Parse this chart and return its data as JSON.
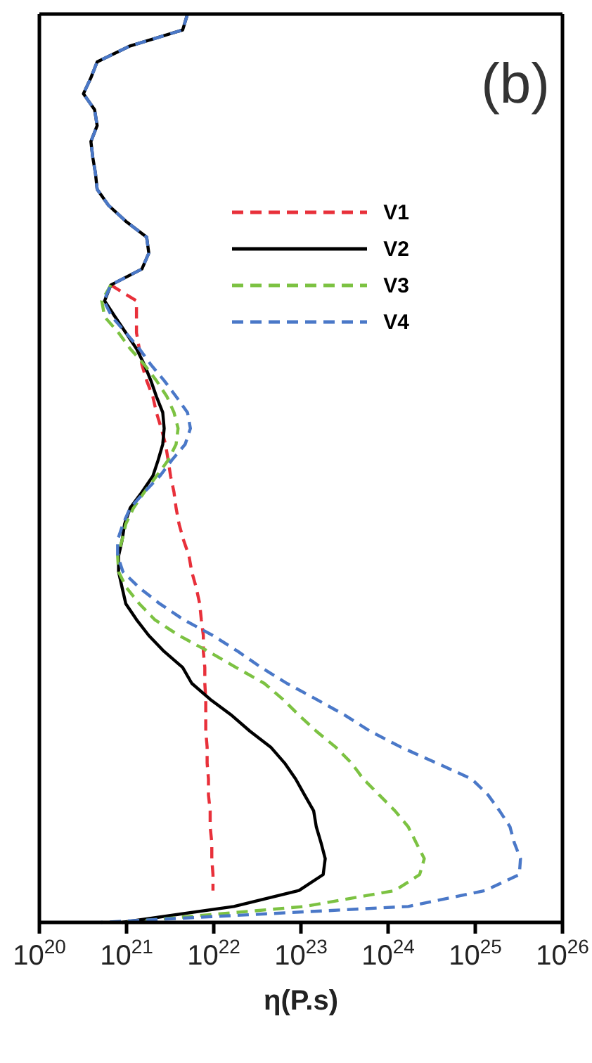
{
  "chart_data": {
    "type": "line",
    "orientation": "horizontal",
    "title": "(b)",
    "xlabel": "η(P.s)",
    "log": "x",
    "xlim": [
      1e+20,
      1e+26
    ],
    "xticks": [
      {
        "value": 1e+20,
        "label": "10$^{20}$"
      },
      {
        "value": 1e+21,
        "label": "10$^{21}$"
      },
      {
        "value": 1e+22,
        "label": "10$^{22}$"
      },
      {
        "value": 1e+23,
        "label": "10$^{23}$"
      },
      {
        "value": 1e+24,
        "label": "10$^{24}$"
      },
      {
        "value": 1e+25,
        "label": "10$^{25}$"
      },
      {
        "value": 1e+26,
        "label": "10$^{26}$"
      }
    ],
    "tick_labels": "x",
    "grid": false,
    "legend": "top right",
    "marker": "none",
    "categories": [
      null,
      null,
      null,
      null,
      null,
      null,
      null,
      null,
      null,
      null,
      null,
      null,
      null,
      null,
      null,
      null,
      null,
      null,
      null,
      null,
      null,
      null,
      null,
      null,
      null,
      null,
      null,
      null,
      null,
      null,
      null,
      null,
      null,
      null,
      null,
      null,
      null,
      null,
      null,
      null,
      null,
      null,
      null,
      null,
      null,
      null,
      null,
      null,
      null,
      null,
      null,
      null,
      null,
      null,
      null,
      null,
      null,
      null
    ],
    "series": [
      {
        "name": "V1",
        "color": "#e8303a",
        "line_style": "dashed",
        "values": [
          null,
          null,
          null,
          null,
          null,
          null,
          null,
          null,
          null,
          null,
          null,
          null,
          null,
          null,
          null,
          null,
          null,
          6.6e+20,
          1.3e+21,
          1.3e+21,
          1.3e+21,
          1.4e+21,
          1.5e+21,
          1.7e+21,
          2e+21,
          2.2e+21,
          2.5e+21,
          2.8e+21,
          3e+21,
          3.2e+21,
          3.5e+21,
          3.7e+21,
          4e+21,
          4.5e+21,
          5.2e+21,
          5.6e+21,
          6.3e+21,
          6.9e+21,
          7.2e+21,
          7.6e+21,
          7.6e+21,
          7.9e+21,
          7.9e+21,
          8.1e+21,
          8.1e+21,
          8.1e+21,
          8.4e+21,
          8.4e+21,
          8.7e+21,
          8.7e+21,
          9.1e+21,
          9.1e+21,
          9.5e+21,
          9.5e+21,
          9.8e+21,
          9.8e+21,
          null,
          null
        ]
      },
      {
        "name": "V2",
        "color": "#000000",
        "line_style": "solid",
        "values": [
          5e+21,
          4.4e+21,
          1.1e+21,
          4.6e+20,
          3.9e+20,
          3.2e+20,
          4.3e+20,
          4.6e+20,
          3.9e+20,
          4.1e+20,
          4.4e+20,
          4.6e+20,
          6.2e+20,
          9.8e+20,
          1.7e+21,
          1.8e+21,
          1.5e+21,
          6.6e+20,
          5.6e+20,
          7.4e+20,
          9.8e+20,
          1.3e+21,
          1.6e+21,
          1.9e+21,
          2.2e+21,
          2.6e+21,
          2.7e+21,
          2.6e+21,
          2.3e+21,
          2e+21,
          1.5e+21,
          1.1e+21,
          9.5e+20,
          8.9e+20,
          8.1e+20,
          8.1e+20,
          8.9e+20,
          9.8e+20,
          1.3e+21,
          1.8e+21,
          2.7e+21,
          4.4e+21,
          5.6e+21,
          9.1e+21,
          1.6e+22,
          2.6e+22,
          4.5e+22,
          6.5e+22,
          8.7e+22,
          1.1e+23,
          1.4e+23,
          1.5e+23,
          1.7e+23,
          1.9e+23,
          1.8e+23,
          9.5e+22,
          1.7e+22,
          8.9e+20
        ]
      },
      {
        "name": "V3",
        "color": "#7cc242",
        "line_style": "dashed",
        "values": [
          null,
          null,
          null,
          null,
          null,
          null,
          null,
          null,
          null,
          null,
          null,
          null,
          null,
          null,
          null,
          null,
          null,
          6.6e+20,
          5.2e+20,
          5.6e+20,
          8.1e+20,
          1.1e+21,
          1.6e+21,
          2.2e+21,
          2.9e+21,
          3.5e+21,
          3.9e+21,
          3.7e+21,
          3e+21,
          2.2e+21,
          1.6e+21,
          1.2e+21,
          9.8e+20,
          8.9e+20,
          7.9e+20,
          8.1e+20,
          1e+21,
          1.4e+21,
          2.1e+21,
          4e+21,
          8.7e+21,
          1.8e+22,
          3.8e+22,
          6.2e+22,
          9.5e+22,
          1.5e+23,
          2.5e+23,
          3.8e+23,
          5.2e+23,
          7.9e+23,
          1.2e+24,
          1.7e+24,
          2.1e+24,
          2.6e+24,
          2.3e+24,
          1.2e+24,
          1.1e+23,
          8.9e+20
        ]
      },
      {
        "name": "V4",
        "color": "#4a78c8",
        "line_style": "dashed",
        "values": [
          5e+21,
          4.4e+21,
          1.1e+21,
          4.6e+20,
          3.9e+20,
          3.2e+20,
          4.3e+20,
          4.6e+20,
          3.9e+20,
          4.1e+20,
          4.4e+20,
          4.6e+20,
          6.2e+20,
          9.8e+20,
          1.7e+21,
          1.8e+21,
          1.5e+21,
          6.6e+20,
          5.5e+20,
          6.8e+20,
          9.8e+20,
          1.4e+21,
          1.9e+21,
          2.7e+21,
          3.7e+21,
          5e+21,
          5.4e+21,
          4.7e+21,
          3.3e+21,
          2.4e+21,
          1.6e+21,
          1.1e+21,
          9.1e+20,
          7.9e+20,
          7.9e+20,
          9.1e+20,
          1.4e+21,
          2.4e+21,
          4.5e+21,
          9.8e+21,
          1.9e+22,
          3.5e+22,
          6.9e+22,
          1.5e+23,
          3.2e+23,
          6.2e+23,
          1.4e+24,
          3.6e+24,
          9.1e+24,
          1.4e+25,
          1.9e+25,
          2.5e+25,
          2.8e+25,
          3.3e+25,
          3.2e+25,
          1.3e+25,
          1.7e+24,
          5.1e+20
        ]
      }
    ]
  }
}
